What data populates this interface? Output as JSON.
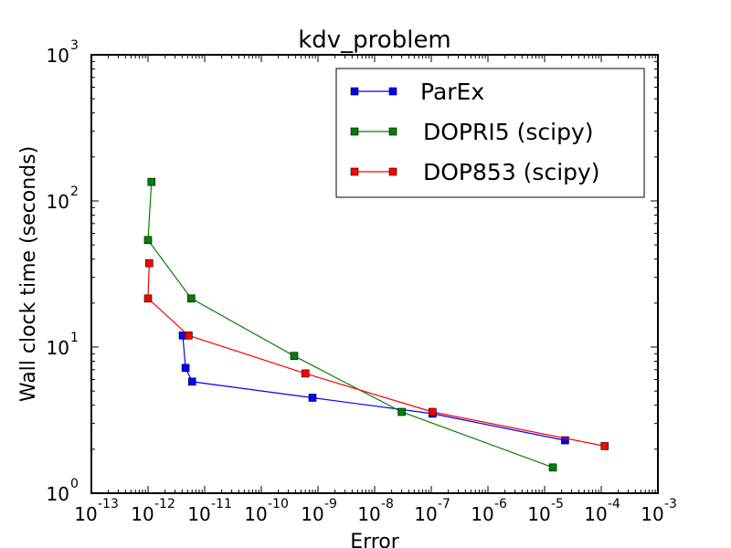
{
  "chart_data": {
    "type": "line",
    "title": "kdv_problem",
    "xlabel": "Error",
    "ylabel": "Wall clock time (seconds)",
    "xscale": "log",
    "yscale": "log",
    "xlim": [
      1e-13,
      0.001
    ],
    "ylim": [
      1,
      1000
    ],
    "grid": false,
    "legend_position": "top-right",
    "x_ticks": [
      {
        "base": "10",
        "exp": "-13",
        "value": 1e-13
      },
      {
        "base": "10",
        "exp": "-12",
        "value": 1e-12
      },
      {
        "base": "10",
        "exp": "-11",
        "value": 1e-11
      },
      {
        "base": "10",
        "exp": "-10",
        "value": 1e-10
      },
      {
        "base": "10",
        "exp": "-9",
        "value": 1e-09
      },
      {
        "base": "10",
        "exp": "-8",
        "value": 1e-08
      },
      {
        "base": "10",
        "exp": "-7",
        "value": 1e-07
      },
      {
        "base": "10",
        "exp": "-6",
        "value": 1e-06
      },
      {
        "base": "10",
        "exp": "-5",
        "value": 1e-05
      },
      {
        "base": "10",
        "exp": "-4",
        "value": 0.0001
      },
      {
        "base": "10",
        "exp": "-3",
        "value": 0.001
      }
    ],
    "y_ticks": [
      {
        "base": "10",
        "exp": "0",
        "value": 1
      },
      {
        "base": "10",
        "exp": "1",
        "value": 10
      },
      {
        "base": "10",
        "exp": "2",
        "value": 100
      },
      {
        "base": "10",
        "exp": "3",
        "value": 1000
      }
    ],
    "series": [
      {
        "name": "ParEx",
        "color": "#0000ff",
        "x": [
          2.3e-05,
          1.05e-07,
          8e-10,
          6e-12,
          4.6e-12,
          4.1e-12
        ],
        "y": [
          2.3,
          3.5,
          4.5,
          5.8,
          7.2,
          12.0
        ]
      },
      {
        "name": "DOPRI5 (scipy)",
        "color": "#008000",
        "x": [
          1.4e-05,
          3e-08,
          3.8e-10,
          5.8e-12,
          1e-12,
          1.15e-12
        ],
        "y": [
          1.5,
          3.6,
          8.7,
          21.5,
          54.0,
          135.0
        ]
      },
      {
        "name": "DOP853 (scipy)",
        "color": "#ff0000",
        "x": [
          0.000115,
          1.05e-07,
          6e-10,
          5.2e-12,
          1e-12,
          1.05e-12
        ],
        "y": [
          2.1,
          3.6,
          6.6,
          12.0,
          21.5,
          37.5
        ]
      }
    ]
  }
}
